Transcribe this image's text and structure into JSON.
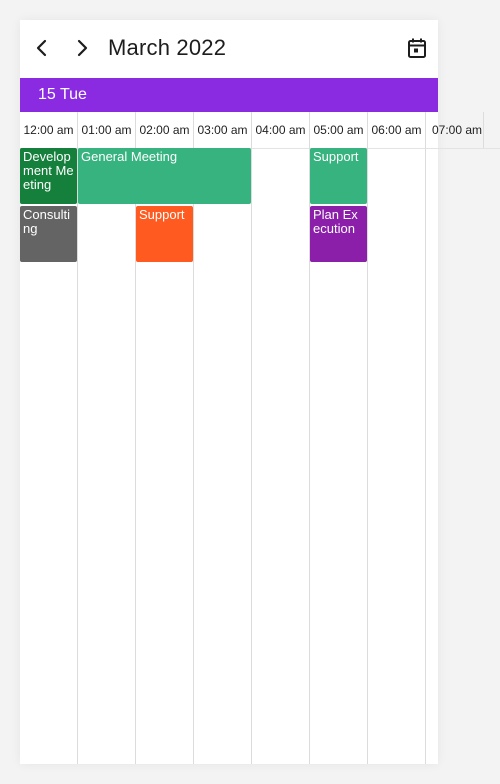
{
  "header": {
    "prev_icon": "chevron-left-icon",
    "next_icon": "chevron-right-icon",
    "title": "March 2022",
    "today_icon": "calendar-today-icon"
  },
  "day_bar": {
    "label": "15 Tue",
    "color": "#8a2be2"
  },
  "time_slots": [
    "12:00 am",
    "01:00 am",
    "02:00 am",
    "03:00 am",
    "04:00 am",
    "05:00 am",
    "06:00 am",
    "07:00 am"
  ],
  "appointments": [
    {
      "subject": "Development Meeting",
      "color": "#157f3c"
    },
    {
      "subject": "General Meeting",
      "color": "#36b37e"
    },
    {
      "subject": "Support",
      "color": "#36b37e"
    },
    {
      "subject": "Consulting",
      "color": "#646464"
    },
    {
      "subject": "Support",
      "color": "#ff5a1f"
    },
    {
      "subject": "Plan Execution",
      "color": "#8b1fa9"
    }
  ]
}
